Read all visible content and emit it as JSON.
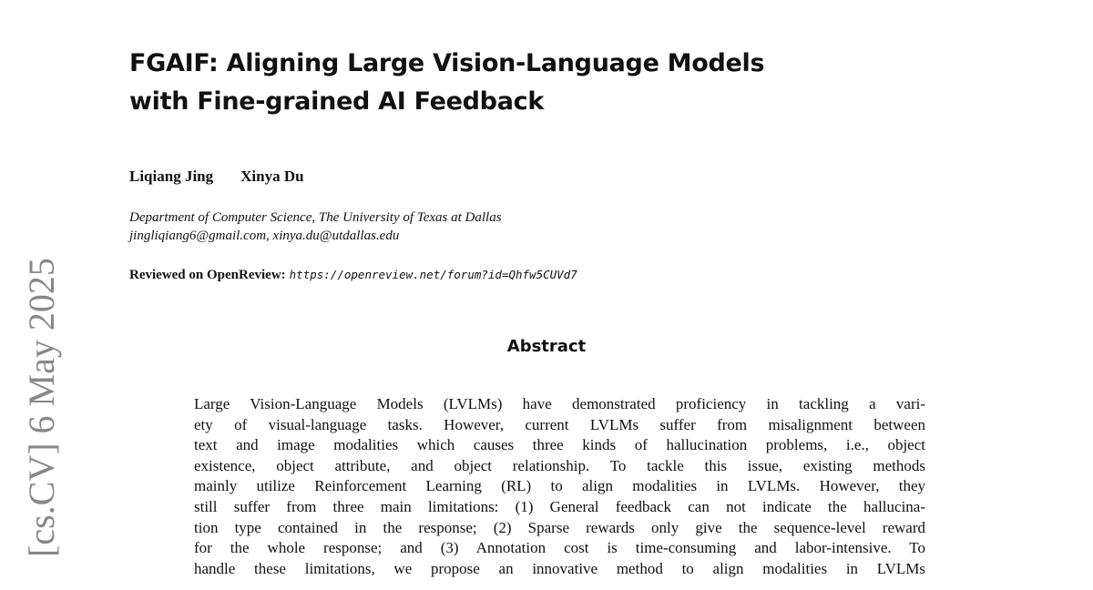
{
  "title_lines": [
    "FGAIF: Aligning Large Vision-Language Models",
    "with Fine-grained AI Feedback"
  ],
  "authors": [
    "Liqiang Jing",
    "Xinya Du"
  ],
  "affiliation": "Department of Computer Science, The University of Texas at Dallas",
  "emails": "jingliqiang6@gmail.com, xinya.du@utdallas.edu",
  "review_label": "Reviewed on OpenReview:",
  "review_url": "https://openreview.net/forum?id=Qhfw5CUVd7",
  "abstract_heading": "Abstract",
  "abstract_lines": [
    "Large Vision-Language Models (LVLMs) have demonstrated proficiency in tackling a vari-",
    "ety of visual-language tasks. However, current LVLMs suffer from misalignment between",
    "text and image modalities which causes three kinds of hallucination problems, i.e., object",
    "existence, object attribute, and object relationship. To tackle this issue, existing methods",
    "mainly utilize Reinforcement Learning (RL) to align modalities in LVLMs. However, they",
    "still suffer from three main limitations: (1) General feedback can not indicate the hallucina-",
    "tion type contained in the response; (2) Sparse rewards only give the sequence-level reward",
    "for the whole response; and (3) Annotation cost is time-consuming and labor-intensive. To",
    "handle these limitations, we propose an innovative method to align modalities in LVLMs"
  ],
  "arxiv_stamp": "[cs.CV]  6 May 2025"
}
